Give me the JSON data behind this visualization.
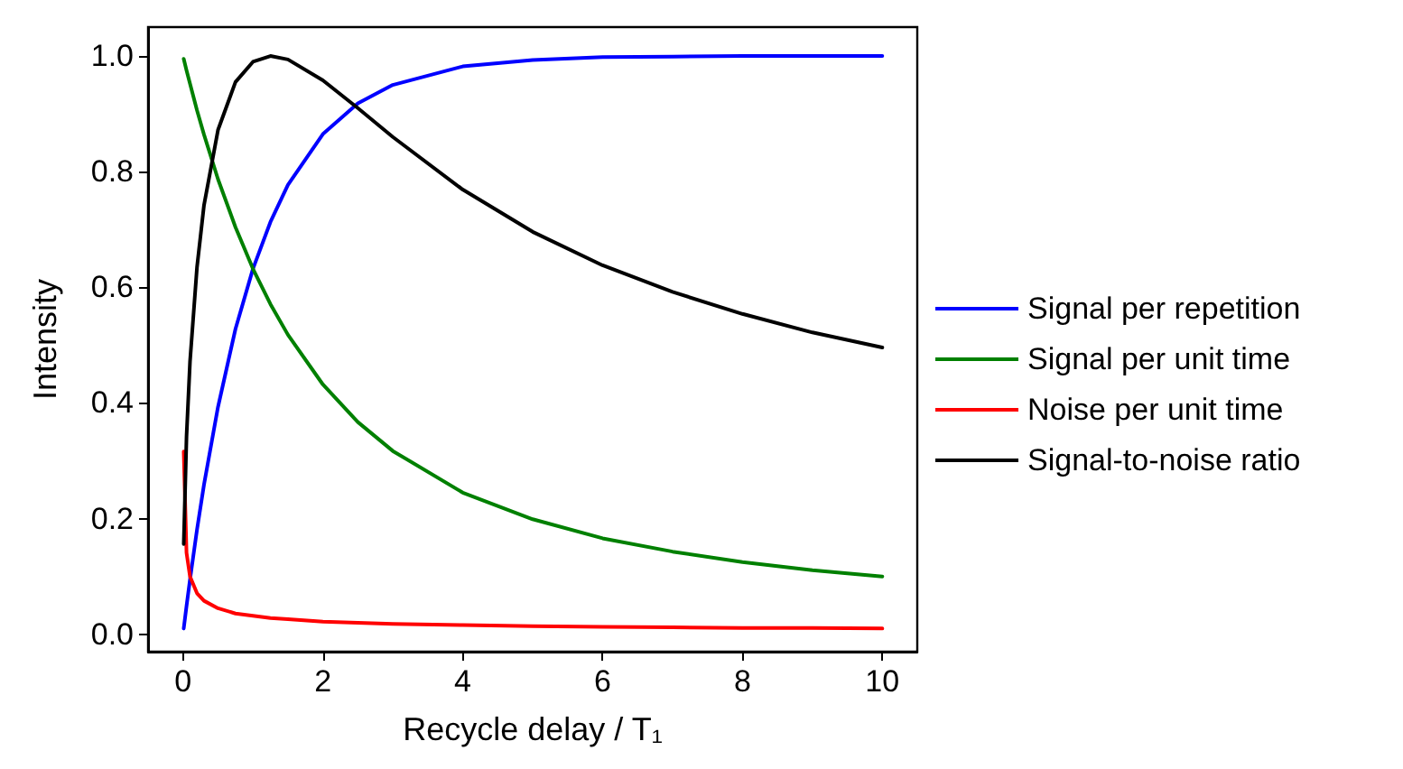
{
  "chart_data": {
    "type": "line",
    "xlabel": "Recycle delay / T₁",
    "ylabel": "Intensity",
    "x": [
      0.01,
      0.05,
      0.1,
      0.2,
      0.3,
      0.5,
      0.75,
      1,
      1.25,
      1.5,
      2,
      2.5,
      3,
      4,
      5,
      6,
      7,
      8,
      9,
      10
    ],
    "series": [
      {
        "name": "Signal per repetition",
        "color": "#0000ff",
        "values": [
          0.01,
          0.049,
          0.095,
          0.181,
          0.259,
          0.393,
          0.528,
          0.632,
          0.713,
          0.777,
          0.865,
          0.918,
          0.95,
          0.982,
          0.993,
          0.998,
          0.999,
          1.0,
          1.0,
          1.0
        ]
      },
      {
        "name": "Signal per unit time",
        "color": "#008000",
        "values": [
          0.995,
          0.975,
          0.952,
          0.906,
          0.864,
          0.787,
          0.704,
          0.632,
          0.571,
          0.518,
          0.432,
          0.367,
          0.317,
          0.245,
          0.199,
          0.166,
          0.143,
          0.125,
          0.111,
          0.1
        ]
      },
      {
        "name": "Noise per unit time",
        "color": "#ff0000",
        "values": [
          0.316,
          0.141,
          0.1,
          0.071,
          0.058,
          0.045,
          0.036,
          0.032,
          0.028,
          0.026,
          0.022,
          0.02,
          0.018,
          0.016,
          0.014,
          0.013,
          0.012,
          0.011,
          0.011,
          0.01
        ]
      },
      {
        "name": "Signal-to-noise ratio",
        "color": "#000000",
        "values": [
          0.156,
          0.342,
          0.472,
          0.635,
          0.742,
          0.872,
          0.955,
          0.99,
          1.0,
          0.994,
          0.958,
          0.91,
          0.86,
          0.769,
          0.696,
          0.638,
          0.592,
          0.554,
          0.522,
          0.496
        ]
      }
    ],
    "xlim": [
      -0.5,
      10.5
    ],
    "ylim": [
      -0.03,
      1.05
    ],
    "xticks": [
      0,
      2,
      4,
      6,
      8,
      10
    ],
    "yticks": [
      {
        "value": 0,
        "label": "0.0"
      },
      0.2,
      0.4,
      0.6,
      0.8,
      {
        "value": 1,
        "label": "1.0"
      }
    ],
    "grid": false,
    "legend": "right",
    "marker": "none",
    "line_style": "solid"
  }
}
